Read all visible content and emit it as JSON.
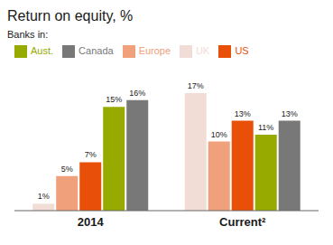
{
  "chart_data": {
    "type": "bar",
    "title": "Return on equity, %",
    "subtitle": "Banks in:",
    "categories": [
      "2014",
      "Current²"
    ],
    "series": [
      {
        "name": "UK",
        "color": "#f2ddd6",
        "values": [
          1,
          17
        ],
        "value_labels": [
          "1%",
          "17%"
        ]
      },
      {
        "name": "Europe",
        "color": "#f0a07a",
        "values": [
          5,
          10
        ],
        "value_labels": [
          "5%",
          "10%"
        ]
      },
      {
        "name": "US",
        "color": "#e8500a",
        "values": [
          7,
          13
        ],
        "value_labels": [
          "7%",
          "13%"
        ]
      },
      {
        "name": "Aust.",
        "color": "#96aa00",
        "values": [
          15,
          11
        ],
        "value_labels": [
          "15%",
          "11%"
        ]
      },
      {
        "name": "Canada",
        "color": "#787878",
        "values": [
          16,
          13
        ],
        "value_labels": [
          "16%",
          "13%"
        ]
      }
    ],
    "ylim": [
      0,
      20
    ],
    "data_labels": true,
    "tick_labels": "x",
    "legend": "top"
  }
}
